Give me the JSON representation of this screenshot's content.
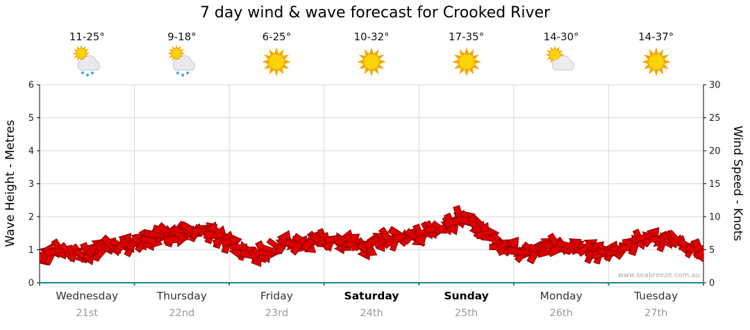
{
  "title": "7 day wind & wave forecast for Crooked River",
  "watermark": "www.seabreeze.com.au",
  "days": [
    {
      "name": "Wednesday",
      "date": "21st",
      "temp": "11-25°",
      "icon": "sun-showers",
      "bold": false
    },
    {
      "name": "Thursday",
      "date": "22nd",
      "temp": "9-18°",
      "icon": "sun-showers",
      "bold": false
    },
    {
      "name": "Friday",
      "date": "23rd",
      "temp": "6-25°",
      "icon": "sunny",
      "bold": false
    },
    {
      "name": "Saturday",
      "date": "24th",
      "temp": "10-32°",
      "icon": "sunny",
      "bold": true
    },
    {
      "name": "Sunday",
      "date": "25th",
      "temp": "17-35°",
      "icon": "sunny",
      "bold": true
    },
    {
      "name": "Monday",
      "date": "26th",
      "temp": "14-30°",
      "icon": "sun-cloud",
      "bold": false
    },
    {
      "name": "Tuesday",
      "date": "27th",
      "temp": "14-37°",
      "icon": "sunny",
      "bold": false
    }
  ],
  "chart_data": {
    "type": "area",
    "title": "7 day wind & wave forecast for Crooked River",
    "x_axis": {
      "categories": [
        "Wednesday 21st",
        "Thursday 22nd",
        "Friday 23rd",
        "Saturday 24th",
        "Sunday 25th",
        "Monday 26th",
        "Tuesday 27th"
      ]
    },
    "y_axis_left": {
      "label": "Wave Height - Metres",
      "range": [
        0,
        6
      ],
      "ticks": [
        0,
        1,
        2,
        3,
        4,
        5,
        6
      ]
    },
    "y_axis_right": {
      "label": "Wind Speed - Knots",
      "range": [
        0,
        30
      ],
      "ticks": [
        0,
        5,
        10,
        15,
        20,
        25,
        30
      ]
    },
    "grid": true,
    "legend": "none",
    "series": [
      {
        "name": "Wind Speed",
        "unit": "knots",
        "points_per_day": 12,
        "values": [
          4.3,
          4.0,
          4.5,
          5.0,
          4.5,
          4.0,
          4.8,
          5.5,
          5.0,
          5.5,
          6.0,
          5.8,
          6.0,
          6.3,
          6.5,
          7.3,
          7.5,
          7.0,
          7.8,
          8.0,
          7.5,
          7.8,
          7.3,
          6.5,
          6.0,
          5.0,
          4.3,
          4.0,
          4.5,
          5.0,
          5.8,
          6.3,
          6.0,
          5.8,
          6.0,
          6.3,
          6.5,
          6.3,
          6.0,
          6.3,
          5.5,
          5.3,
          6.0,
          6.5,
          6.3,
          6.8,
          6.5,
          7.0,
          7.3,
          7.8,
          8.5,
          9.0,
          9.5,
          10.0,
          9.0,
          8.0,
          7.0,
          6.0,
          5.5,
          5.3,
          5.0,
          4.8,
          5.0,
          5.5,
          5.8,
          5.5,
          6.0,
          5.8,
          5.3,
          4.8,
          4.5,
          4.3,
          4.8,
          5.5,
          6.0,
          6.5,
          7.0,
          6.5,
          6.0,
          6.8,
          6.3,
          5.5,
          5.0,
          4.8
        ]
      }
    ],
    "colors": {
      "wind_fill": "#E00000",
      "wind_outline": "#8B0000",
      "grid": "#D9D9D9",
      "axis": "#000000",
      "baseline": "#1F808A"
    }
  }
}
